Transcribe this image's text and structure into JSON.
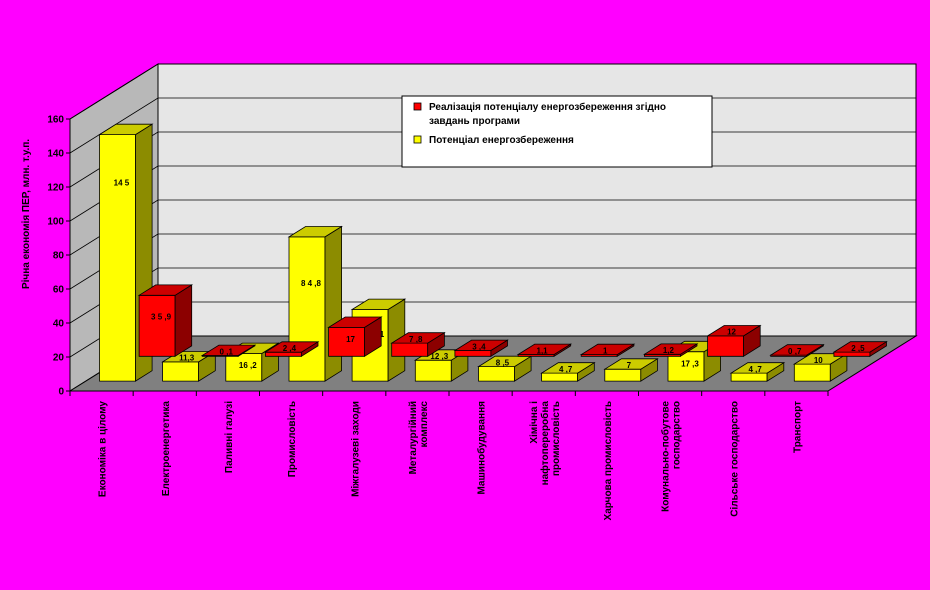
{
  "colors": {
    "background": "#FF00FF",
    "wall_back": "#E6E6E6",
    "wall_side": "#B8B8B8",
    "floor": "#808080",
    "series_red": "#FF0000",
    "series_yellow": "#FFFF00"
  },
  "chart_data": {
    "type": "bar",
    "subtype": "3d-clustered-depth",
    "title": "",
    "xlabel": "",
    "ylabel": "Річна економія ПЕР, млн. т.у.п.",
    "ylim": [
      0,
      160
    ],
    "yticks": [
      "0",
      "20",
      "40",
      "60",
      "80",
      "100",
      "120",
      "140",
      "160"
    ],
    "grid": true,
    "legend_position": "top-right",
    "categories": [
      "Економіка в цілому",
      "Електроенергетика",
      "Паливні галузі",
      "Промисловість",
      "Міжгалузеві заходи",
      "Металургійний комплекс",
      "Машинобудування",
      "Хімічна і нафтопереробна промисловість",
      "Харчова промисловість",
      "Комунально-побутове господарство",
      "Сільське господарство",
      "Транспорт"
    ],
    "category_lines": [
      [
        "Економіка в цілому"
      ],
      [
        "Електроенергетика"
      ],
      [
        "Паливні галузі"
      ],
      [
        "Промисловість"
      ],
      [
        "Міжгалузеві заходи"
      ],
      [
        "Металургійний",
        "комплекс"
      ],
      [
        "Машинобудування"
      ],
      [
        "Хімічна і",
        "нафтопереробна",
        "промисловість"
      ],
      [
        "Харчова промисловість"
      ],
      [
        "Комунально-побутове",
        "господарство"
      ],
      [
        "Сільське господарство"
      ],
      [
        "Транспорт"
      ]
    ],
    "series": [
      {
        "name": "Реалізація потенціалу енергозбереження згідно завдань програми",
        "legend_lines": [
          "Реалізація потенціалу енергозбереження згідно",
          "завдань програми"
        ],
        "color": "#FF0000",
        "values": [
          35.9,
          0.1,
          2.4,
          17,
          7.8,
          3.4,
          1.1,
          1,
          1.2,
          12,
          0.7,
          2.5
        ],
        "labels": [
          "3 5 ,9",
          "0 ,1",
          "2 ,4",
          "17",
          "7 ,8",
          "3 ,4",
          "1,1",
          "1",
          "1,2",
          "12",
          "0 ,7",
          "2 ,5"
        ]
      },
      {
        "name": "Потенціал енергозбереження",
        "legend_lines": [
          "Потенціал енергозбереження"
        ],
        "color": "#FFFF00",
        "values": [
          145,
          11.3,
          16.2,
          84.8,
          42.1,
          12.3,
          8.5,
          4.7,
          7,
          17.3,
          4.7,
          10
        ],
        "labels": [
          "14 5",
          "11,3",
          "16 ,2",
          "8 4 ,8",
          "4 2 ,1",
          "12 ,3",
          "8 ,5",
          "4 ,7",
          "7",
          "17 ,3",
          "4 ,7",
          "10"
        ]
      }
    ]
  }
}
